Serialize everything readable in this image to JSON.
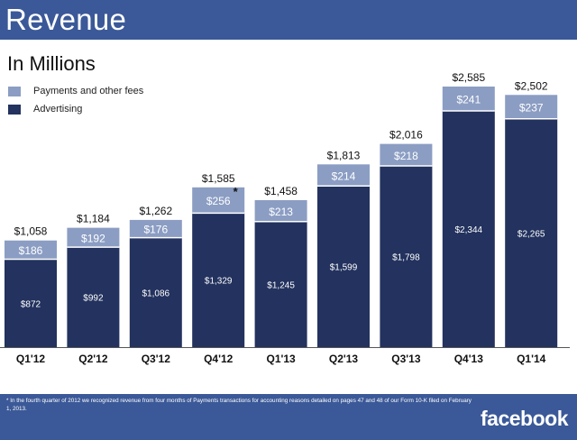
{
  "header": {
    "title": "Revenue"
  },
  "subtitle": "In Millions",
  "legend": [
    {
      "label": "Payments and other fees",
      "color": "#8b9dc3"
    },
    {
      "label": "Advertising",
      "color": "#23325e"
    }
  ],
  "chart_data": {
    "type": "bar",
    "stacked": true,
    "title": "Revenue",
    "subtitle": "In Millions",
    "categories": [
      "Q1'12",
      "Q2'12",
      "Q3'12",
      "Q4'12",
      "Q1'13",
      "Q2'13",
      "Q3'13",
      "Q4'13",
      "Q1'14"
    ],
    "series": [
      {
        "name": "Advertising",
        "color": "#23325e",
        "values": [
          872,
          992,
          1086,
          1329,
          1245,
          1599,
          1798,
          2344,
          2265
        ],
        "labels": [
          "$872",
          "$992",
          "$1,086",
          "$1,329",
          "$1,245",
          "$1,599",
          "$1,798",
          "$2,344",
          "$2,265"
        ]
      },
      {
        "name": "Payments and other fees",
        "color": "#8b9dc3",
        "values": [
          186,
          192,
          176,
          256,
          213,
          214,
          218,
          241,
          237
        ],
        "labels": [
          "$186",
          "$192",
          "$176",
          "$256",
          "$213",
          "$214",
          "$218",
          "$241",
          "$237"
        ]
      }
    ],
    "totals": [
      1058,
      1184,
      1262,
      1585,
      1458,
      1813,
      2016,
      2585,
      2502
    ],
    "total_labels": [
      "$1,058",
      "$1,184",
      "$1,262",
      "$1,585",
      "$1,458",
      "$1,813",
      "$2,016",
      "$2,585",
      "$2,502"
    ],
    "annotations": [
      {
        "category": "Q4'12",
        "series": "Payments and other fees",
        "text": "*"
      }
    ],
    "xlabel": "",
    "ylabel": "",
    "ylim": [
      0,
      2585
    ],
    "grid": false
  },
  "footer": {
    "footnote": "* In the fourth quarter of 2012 we recognized revenue from four months of Payments transactions for accounting reasons detailed on pages 47 and 48 of our Form 10-K filed on February 1, 2013.",
    "brand": "facebook"
  }
}
